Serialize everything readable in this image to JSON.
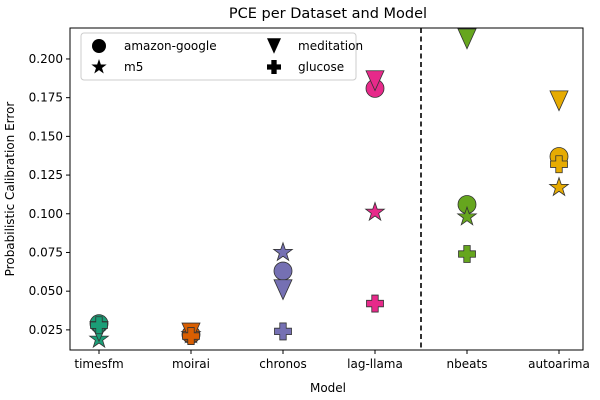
{
  "chart_data": {
    "type": "scatter",
    "title": "PCE per Dataset and Model",
    "xlabel": "Model",
    "ylabel": "Probabilistic Calibration Error",
    "categories": [
      "timesfm",
      "moirai",
      "chronos",
      "lag-llama",
      "nbeats",
      "autoarima"
    ],
    "ylim": [
      0.012,
      0.22
    ],
    "yticks": [
      "0.025",
      "0.050",
      "0.075",
      "0.100",
      "0.125",
      "0.150",
      "0.175",
      "0.200"
    ],
    "divider_after_category": "lag-llama",
    "category_colors": {
      "timesfm": "#1b9e77",
      "moirai": "#d95f02",
      "chronos": "#7570b3",
      "lag-llama": "#e7298a",
      "nbeats": "#66a61e",
      "autoarima": "#e6ab02"
    },
    "legend": {
      "placement": "upper-left",
      "entries": [
        {
          "label": "amazon-google",
          "marker": "circle"
        },
        {
          "label": "m5",
          "marker": "star"
        },
        {
          "label": "meditation",
          "marker": "triangle-down"
        },
        {
          "label": "glucose",
          "marker": "plus"
        }
      ]
    },
    "series": [
      {
        "name": "amazon-google",
        "marker": "circle",
        "values": [
          0.029,
          0.022,
          0.063,
          0.181,
          0.106,
          0.137
        ]
      },
      {
        "name": "m5",
        "marker": "star",
        "values": [
          0.019,
          0.022,
          0.075,
          0.101,
          0.098,
          0.117
        ]
      },
      {
        "name": "meditation",
        "marker": "triangle-down",
        "values": [
          0.024,
          0.023,
          0.051,
          0.186,
          0.213,
          0.173
        ]
      },
      {
        "name": "glucose",
        "marker": "plus",
        "values": [
          0.028,
          0.021,
          0.024,
          0.042,
          0.074,
          0.132
        ]
      }
    ]
  }
}
